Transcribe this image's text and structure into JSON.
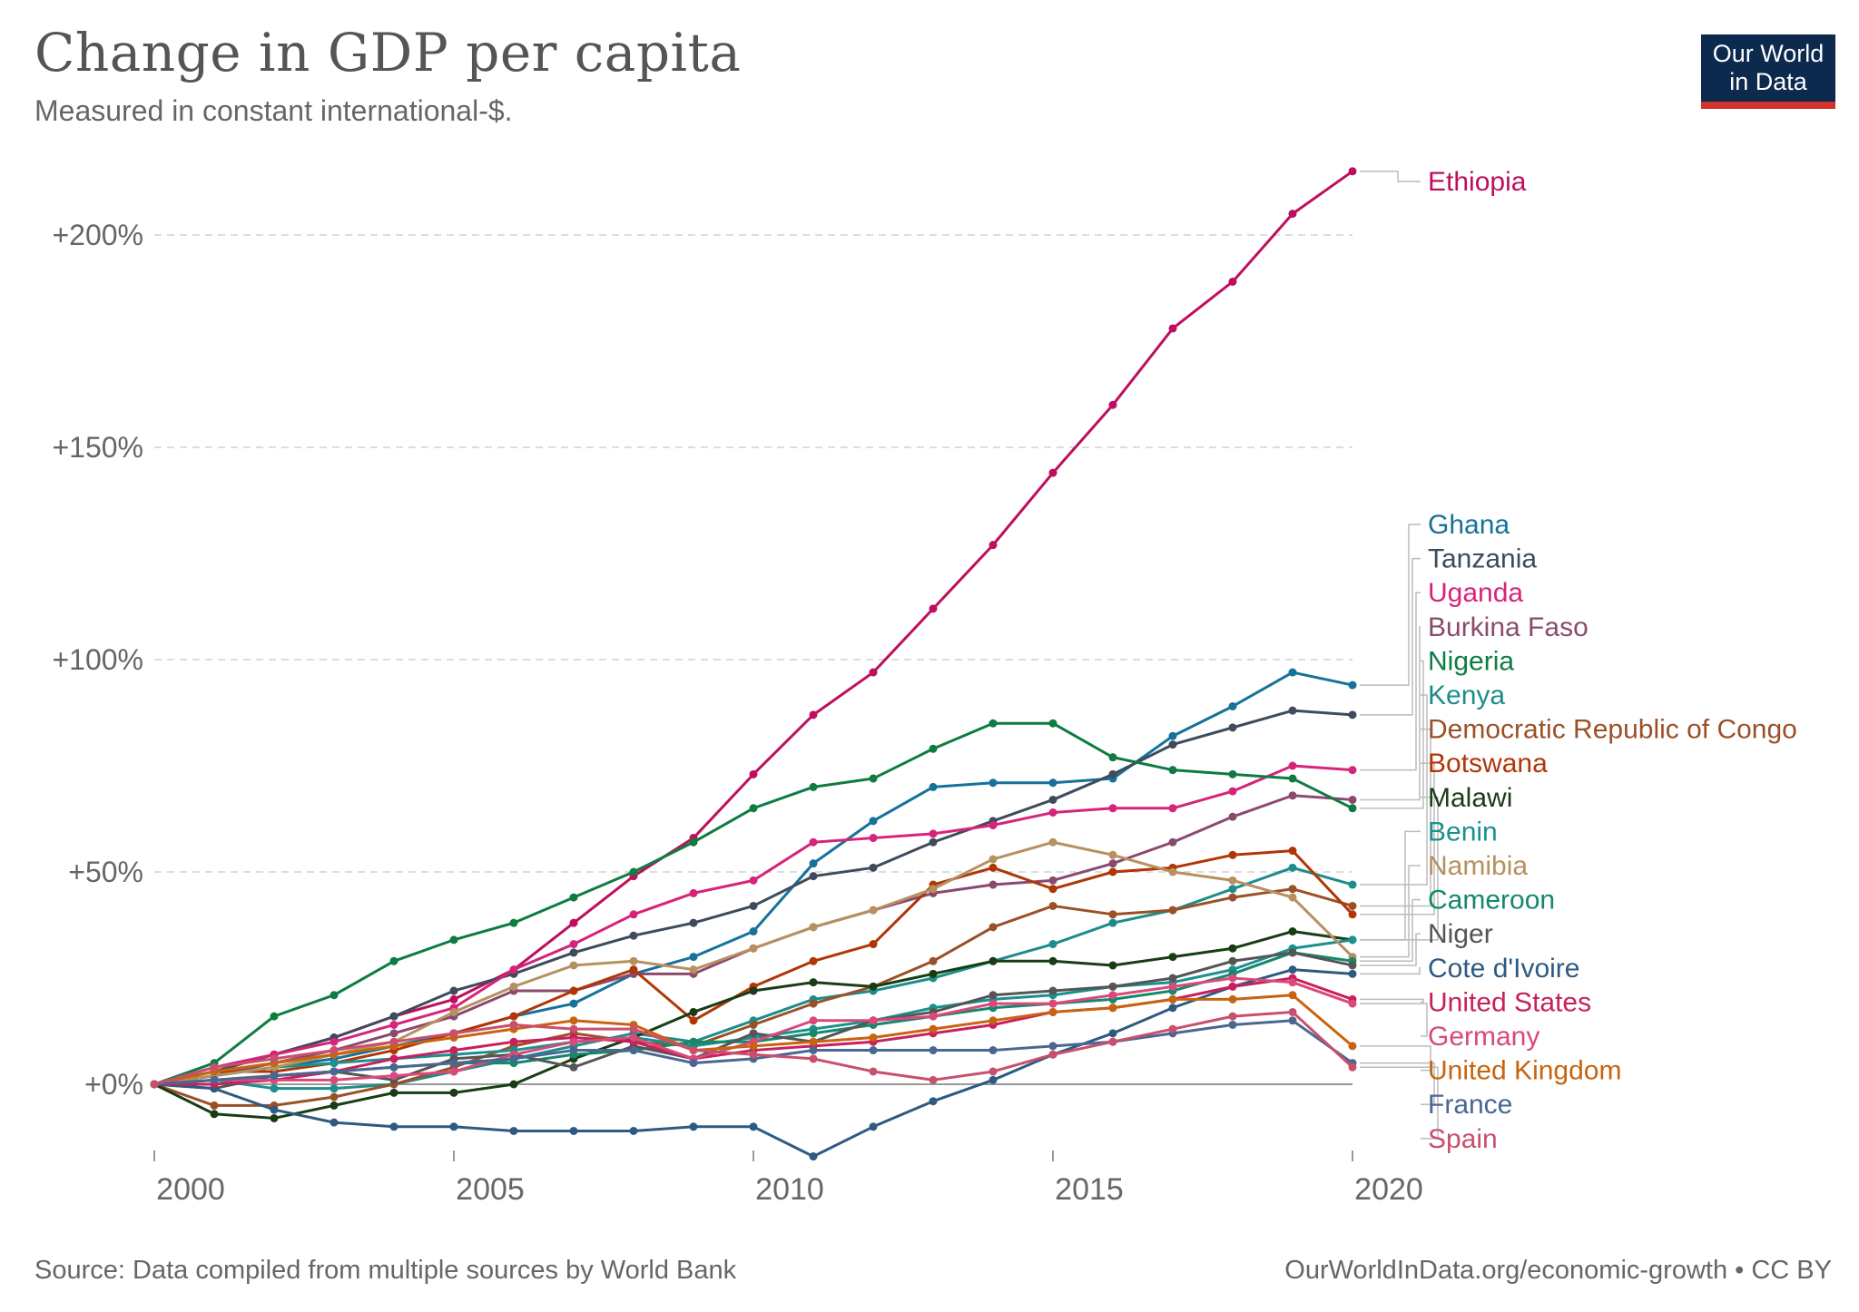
{
  "title": "Change in GDP per capita",
  "subtitle": "Measured in constant international-$.",
  "logo": {
    "line1": "Our World",
    "line2": "in Data"
  },
  "source": "Source: Data compiled from multiple sources by World Bank",
  "credit": "OurWorldInData.org/economic-growth • CC BY",
  "chart_data": {
    "type": "line",
    "title": "Change in GDP per capita",
    "subtitle": "Measured in constant international-$.",
    "xlabel": "",
    "ylabel": "",
    "xlim": [
      2000,
      2020
    ],
    "ylim": [
      -18,
      215
    ],
    "x_ticks": [
      2000,
      2005,
      2010,
      2015,
      2020
    ],
    "x_tick_labels": [
      "2000",
      "2005",
      "2010",
      "2015",
      "2020"
    ],
    "y_ticks": [
      0,
      50,
      100,
      150,
      200
    ],
    "y_tick_labels": [
      "+0%",
      "+50%",
      "+100%",
      "+150%",
      "+200%"
    ],
    "grid": "horizontal dashed",
    "legend": "right, labels at line ends",
    "x": [
      2000,
      2001,
      2002,
      2003,
      2004,
      2005,
      2006,
      2007,
      2008,
      2009,
      2010,
      2011,
      2012,
      2013,
      2014,
      2015,
      2016,
      2017,
      2018,
      2019,
      2020
    ],
    "series": [
      {
        "name": "Ethiopia",
        "color": "#be0f5e",
        "values": [
          0,
          3,
          7,
          11,
          16,
          20,
          27,
          38,
          49,
          58,
          73,
          87,
          97,
          112,
          127,
          144,
          160,
          178,
          189,
          205,
          215
        ]
      },
      {
        "name": "Ghana",
        "color": "#15729a",
        "values": [
          0,
          2,
          4,
          6,
          9,
          12,
          16,
          19,
          26,
          30,
          36,
          52,
          62,
          70,
          71,
          71,
          72,
          82,
          89,
          97,
          94
        ]
      },
      {
        "name": "Tanzania",
        "color": "#3e4b5c",
        "values": [
          0,
          3,
          7,
          11,
          16,
          22,
          26,
          31,
          35,
          38,
          42,
          49,
          51,
          57,
          62,
          67,
          73,
          80,
          84,
          88,
          87
        ]
      },
      {
        "name": "Uganda",
        "color": "#d6247a",
        "values": [
          0,
          4,
          7,
          10,
          14,
          18,
          27,
          33,
          40,
          45,
          48,
          57,
          58,
          59,
          61,
          64,
          65,
          65,
          69,
          75,
          74
        ]
      },
      {
        "name": "Burkina Faso",
        "color": "#8a4a6e",
        "values": [
          0,
          2,
          5,
          8,
          12,
          16,
          22,
          22,
          26,
          26,
          32,
          37,
          41,
          45,
          47,
          48,
          52,
          57,
          63,
          68,
          67
        ]
      },
      {
        "name": "Nigeria",
        "color": "#0e7c41",
        "values": [
          0,
          5,
          16,
          21,
          29,
          34,
          38,
          44,
          50,
          57,
          65,
          70,
          72,
          79,
          85,
          85,
          77,
          74,
          73,
          72,
          65
        ]
      },
      {
        "name": "Kenya",
        "color": "#1c8d8a",
        "values": [
          0,
          1,
          -1,
          -1,
          0,
          3,
          6,
          9,
          12,
          10,
          15,
          20,
          22,
          25,
          29,
          33,
          38,
          41,
          46,
          51,
          47
        ]
      },
      {
        "name": "Democratic Republic of Congo",
        "color": "#9a5128",
        "values": [
          0,
          -5,
          -5,
          -3,
          0,
          4,
          9,
          12,
          10,
          9,
          14,
          19,
          23,
          29,
          37,
          42,
          40,
          41,
          44,
          46,
          42
        ]
      },
      {
        "name": "Botswana",
        "color": "#b03606",
        "values": [
          0,
          3,
          3,
          5,
          8,
          12,
          16,
          22,
          27,
          15,
          23,
          29,
          33,
          47,
          51,
          46,
          50,
          51,
          54,
          55,
          40
        ]
      },
      {
        "name": "Malawi",
        "color": "#183d14",
        "values": [
          0,
          -7,
          -8,
          -5,
          -2,
          -2,
          0,
          6,
          11,
          17,
          22,
          24,
          23,
          26,
          29,
          29,
          28,
          30,
          32,
          36,
          34
        ]
      },
      {
        "name": "Benin",
        "color": "#18918f",
        "values": [
          0,
          2,
          4,
          5,
          6,
          7,
          8,
          10,
          11,
          9,
          11,
          13,
          15,
          18,
          20,
          21,
          23,
          24,
          27,
          32,
          34
        ]
      },
      {
        "name": "Namibia",
        "color": "#b79060",
        "values": [
          0,
          2,
          4,
          7,
          10,
          17,
          23,
          28,
          29,
          27,
          32,
          37,
          41,
          46,
          53,
          57,
          54,
          50,
          48,
          44,
          30
        ]
      },
      {
        "name": "Cameroon",
        "color": "#14886b",
        "values": [
          0,
          1,
          2,
          3,
          4,
          5,
          5,
          7,
          8,
          10,
          10,
          12,
          14,
          16,
          18,
          19,
          20,
          22,
          26,
          31,
          29
        ]
      },
      {
        "name": "Niger",
        "color": "#555555",
        "values": [
          0,
          -1,
          2,
          3,
          1,
          6,
          7,
          4,
          9,
          6,
          12,
          10,
          15,
          17,
          21,
          22,
          23,
          25,
          29,
          31,
          28
        ]
      },
      {
        "name": "Cote d'Ivoire",
        "color": "#2d5a82",
        "values": [
          0,
          -1,
          -6,
          -9,
          -10,
          -10,
          -11,
          -11,
          -11,
          -10,
          -10,
          -17,
          -10,
          -4,
          1,
          7,
          12,
          18,
          23,
          27,
          26
        ]
      },
      {
        "name": "United States",
        "color": "#c8205d",
        "values": [
          0,
          0,
          1,
          3,
          6,
          8,
          10,
          11,
          10,
          6,
          8,
          9,
          10,
          12,
          14,
          17,
          18,
          20,
          23,
          25,
          20
        ]
      },
      {
        "name": "Germany",
        "color": "#d9497a",
        "values": [
          0,
          1,
          1,
          1,
          2,
          3,
          7,
          10,
          11,
          6,
          10,
          15,
          15,
          16,
          19,
          19,
          21,
          23,
          25,
          24,
          19
        ]
      },
      {
        "name": "United Kingdom",
        "color": "#c8640f",
        "values": [
          0,
          3,
          5,
          7,
          9,
          11,
          13,
          15,
          14,
          8,
          9,
          10,
          11,
          13,
          15,
          17,
          18,
          20,
          20,
          21,
          9
        ]
      },
      {
        "name": "France",
        "color": "#4a6791",
        "values": [
          0,
          1,
          2,
          3,
          4,
          5,
          6,
          8,
          8,
          5,
          6,
          8,
          8,
          8,
          8,
          9,
          10,
          12,
          14,
          15,
          5
        ]
      },
      {
        "name": "Spain",
        "color": "#c94f6d",
        "values": [
          0,
          4,
          6,
          8,
          10,
          12,
          14,
          13,
          13,
          8,
          7,
          6,
          3,
          1,
          3,
          7,
          10,
          13,
          16,
          17,
          4
        ]
      }
    ]
  }
}
